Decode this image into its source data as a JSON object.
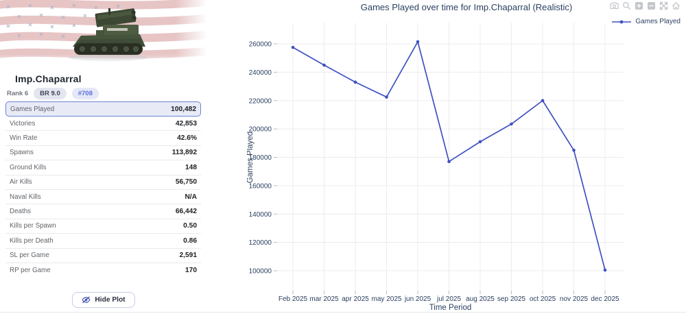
{
  "colors": {
    "accent_blue": "#3e51c1",
    "axis_text": "#2a3f5f",
    "grid": "#ececf1",
    "highlight_row_bg": "#e8ebf6",
    "highlight_row_border": "#6d83d4",
    "badge_bg": "#e3e6ef",
    "position_badge_text": "#5b70d8",
    "modebar_icon": "#c3c6cb"
  },
  "vehicle": {
    "title": "Imp.Chaparral",
    "rank": "Rank 6",
    "br_badge": "BR 9.0",
    "position_badge": "#708",
    "image": "chaparral-sam-tank-on-us-flag",
    "stats": [
      {
        "label": "Games Played",
        "value": "100,482",
        "highlighted": true
      },
      {
        "label": "Victories",
        "value": "42,853"
      },
      {
        "label": "Win Rate",
        "value": "42.6%"
      },
      {
        "label": "Spawns",
        "value": "113,892"
      },
      {
        "label": "Ground Kills",
        "value": "148"
      },
      {
        "label": "Air Kills",
        "value": "56,750"
      },
      {
        "label": "Naval Kills",
        "value": "N/A"
      },
      {
        "label": "Deaths",
        "value": "66,442"
      },
      {
        "label": "Kills per Spawn",
        "value": "0.50"
      },
      {
        "label": "Kills per Death",
        "value": "0.86"
      },
      {
        "label": "SL per Game",
        "value": "2,591"
      },
      {
        "label": "RP per Game",
        "value": "170"
      }
    ],
    "hide_plot_label": "Hide Plot"
  },
  "modebar_icons": [
    "camera",
    "zoom",
    "zoom-in",
    "zoom-out",
    "autoscale",
    "reset-home"
  ],
  "chart_data": {
    "type": "line",
    "title": "Games Played over time for Imp.Chaparral (Realistic)",
    "xlabel": "Time Period",
    "ylabel": "Games Played",
    "legend": [
      "Games Played"
    ],
    "legend_position": "top-right",
    "grid": true,
    "categories": [
      "Feb 2025",
      "mar 2025",
      "apr 2025",
      "may 2025",
      "jun 2025",
      "jul 2025",
      "aug 2025",
      "sep 2025",
      "oct 2025",
      "nov 2025",
      "dec 2025"
    ],
    "series": [
      {
        "name": "Games Played",
        "color": "#3e51c1",
        "values": [
          257500,
          245000,
          233000,
          222500,
          261500,
          177000,
          191000,
          203500,
          220000,
          185000,
          100482
        ]
      }
    ],
    "ylim": [
      90000,
      270000
    ],
    "yticks": [
      100000,
      120000,
      140000,
      160000,
      180000,
      200000,
      220000,
      240000,
      260000
    ]
  }
}
